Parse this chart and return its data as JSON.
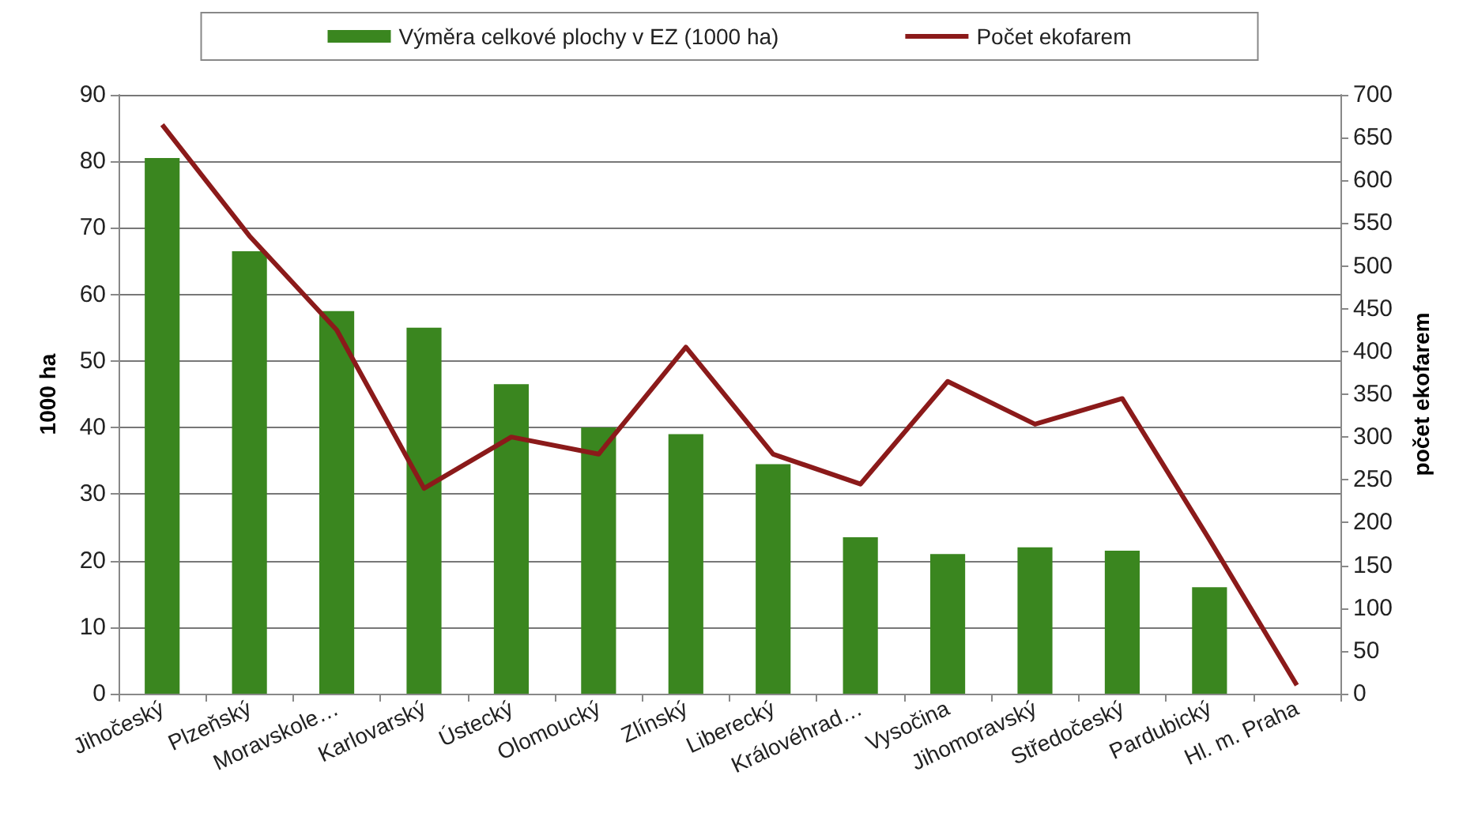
{
  "chart_data": {
    "type": "bar",
    "categories": [
      "Jihočeský",
      "Plzeňský",
      "Moravskole…",
      "Karlovarský",
      "Ústecký",
      "Olomoucký",
      "Zlínský",
      "Liberecký",
      "Královéhrad…",
      "Vysočina",
      "Jihomoravský",
      "Středočeský",
      "Pardubický",
      "Hl. m. Praha"
    ],
    "series": [
      {
        "name": "Výměra celkové plochy v EZ (1000 ha)",
        "color": "#3a861f",
        "values": [
          80.5,
          66.5,
          57.5,
          55,
          46.5,
          40,
          39,
          34.5,
          23.5,
          21,
          22,
          21.5,
          16,
          null
        ]
      },
      {
        "name": "Počet ekofarem",
        "type": "line",
        "axis": "y2",
        "color": "#8b1a1a",
        "values": [
          665,
          535,
          425,
          240,
          300,
          280,
          405,
          280,
          245,
          365,
          315,
          345,
          180,
          10
        ]
      }
    ],
    "ylabel": "1000 ha",
    "y2label": "počet ekofarem",
    "ylim": [
      0,
      90
    ],
    "yticks": [
      0,
      10,
      20,
      30,
      40,
      50,
      60,
      70,
      80,
      90
    ],
    "y2lim": [
      0,
      700
    ],
    "y2ticks": [
      0,
      50,
      100,
      150,
      200,
      250,
      300,
      350,
      400,
      450,
      500,
      550,
      600,
      650,
      700
    ],
    "grid": "y",
    "legend": "top",
    "marker": "none",
    "line_style": "solid"
  }
}
